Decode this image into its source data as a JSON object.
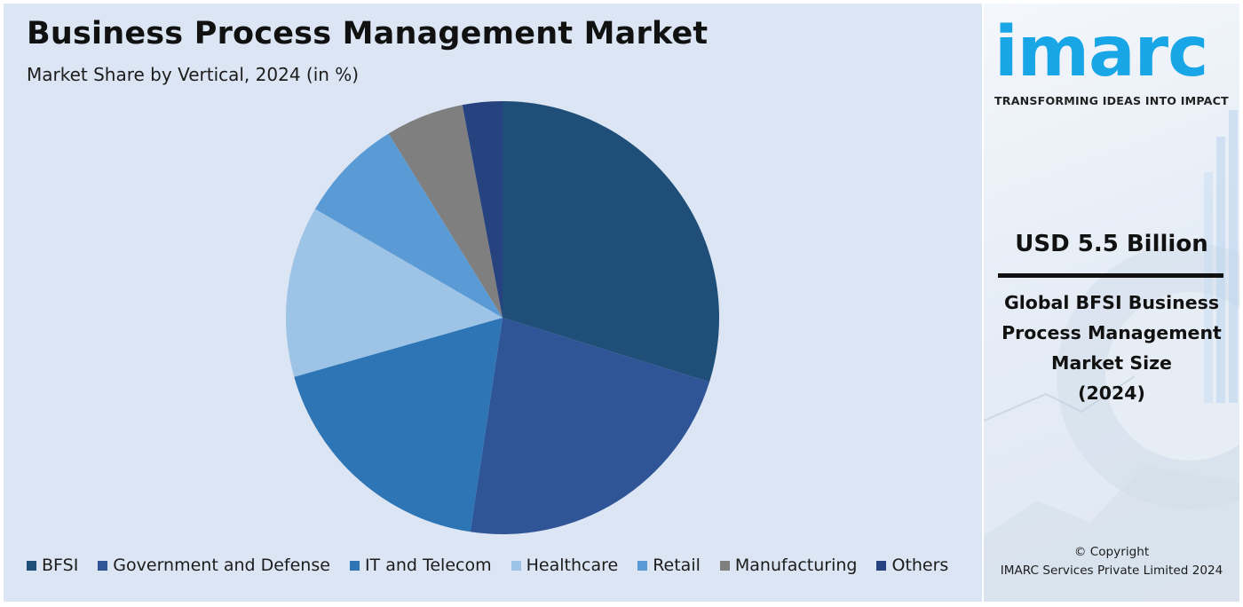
{
  "chart_data": {
    "type": "pie",
    "title": "Business Process Management Market",
    "subtitle": "Market Share by Vertical, 2024 (in %)",
    "categories": [
      "BFSI",
      "Government and Defense",
      "IT and Telecom",
      "Healthcare",
      "Retail",
      "Manufacturing",
      "Others"
    ],
    "values": [
      30.1,
      22.8,
      18.4,
      12.9,
      7.9,
      5.9,
      3.0
    ],
    "colors": [
      "#1f4e79",
      "#2f5597",
      "#2e75b6",
      "#9dc3e6",
      "#5b9bd5",
      "#7f7f7f",
      "#26427f"
    ],
    "start_angle_deg": 0,
    "direction": "clockwise",
    "legend_position": "bottom"
  },
  "side_panel": {
    "logo_text": "imarc",
    "tagline": "TRANSFORMING IDEAS INTO IMPACT",
    "market_value": "USD 5.5 Billion",
    "market_description_lines": [
      "Global BFSI Business",
      "Process Management",
      "Market Size",
      "(2024)"
    ],
    "copyright_line1": "© Copyright",
    "copyright_line2": "IMARC Services Private Limited 2024",
    "colors": {
      "logo": "#19a6e6",
      "text": "#111111"
    }
  }
}
